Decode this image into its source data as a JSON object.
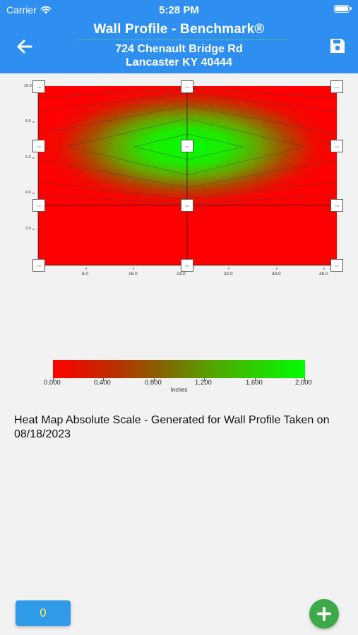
{
  "status_bar": {
    "carrier": "Carrier",
    "time": "5:28 PM"
  },
  "header": {
    "title": "Wall Profile - Benchmark®",
    "address_line1": "724 Chenault Bridge Rd",
    "address_line2": "Lancaster KY 40444",
    "back_icon": "arrow-left-icon",
    "save_icon": "floppy-disk-icon",
    "background": "#2f8ff0"
  },
  "heatmap": {
    "y_ticks": [
      "10.0",
      "8.0",
      "6.0",
      "4.0",
      "2.0"
    ],
    "x_ticks": [
      "8.0",
      "16.0",
      "24.0",
      "32.0",
      "40.0",
      "48.0"
    ],
    "sensor_label": "0.00",
    "colors": {
      "low": "#ff0000",
      "high": "#00ff00"
    }
  },
  "legend": {
    "labels": [
      "0.000",
      "0.400",
      "0.800",
      "1.200",
      "1.600",
      "2.000"
    ],
    "unit": "Inches"
  },
  "caption": "Heat Map Absolute Scale - Generated for Wall Profile Taken on 08/18/2023",
  "bottom": {
    "count_label": "0",
    "add_icon": "plus-icon",
    "add_color": "#3daa4a"
  }
}
